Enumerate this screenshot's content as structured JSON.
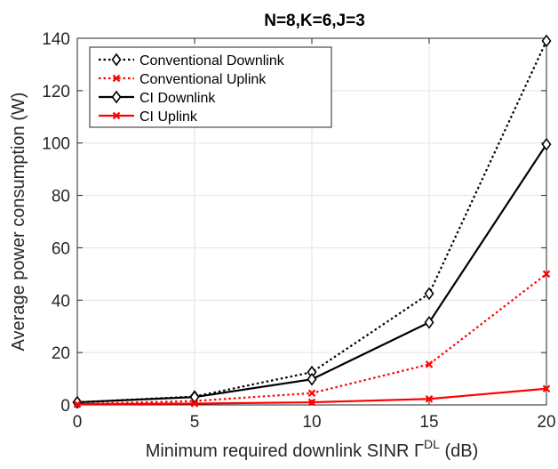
{
  "chart_data": {
    "type": "line",
    "title": "N=8,K=6,J=3",
    "xlabel": "Minimum required downlink SINR Γ",
    "xlabel_superscript": "DL",
    "xlabel_suffix": " (dB)",
    "ylabel": "Average power consumption (W)",
    "x": [
      0,
      5,
      10,
      15,
      20
    ],
    "xlim": [
      0,
      20
    ],
    "ylim": [
      0,
      140
    ],
    "xticks": [
      0,
      5,
      10,
      15,
      20
    ],
    "yticks": [
      0,
      20,
      40,
      60,
      80,
      100,
      120,
      140
    ],
    "grid": true,
    "legend_position": "top-left",
    "series": [
      {
        "name": "Conventional Downlink",
        "values": [
          1.0,
          3.2,
          12.5,
          42.5,
          139.0
        ],
        "color": "#000000",
        "dash": "dotted",
        "marker": "diamond"
      },
      {
        "name": "Conventional Uplink",
        "values": [
          0.3,
          1.5,
          4.5,
          15.5,
          50.0
        ],
        "color": "#ff0000",
        "dash": "dotted",
        "marker": "x"
      },
      {
        "name": "CI Downlink",
        "values": [
          1.0,
          3.0,
          9.8,
          31.5,
          99.5
        ],
        "color": "#000000",
        "dash": "solid",
        "marker": "diamond"
      },
      {
        "name": "CI Uplink",
        "values": [
          0.3,
          0.5,
          1.0,
          2.3,
          6.2
        ],
        "color": "#ff0000",
        "dash": "solid",
        "marker": "x"
      }
    ]
  }
}
